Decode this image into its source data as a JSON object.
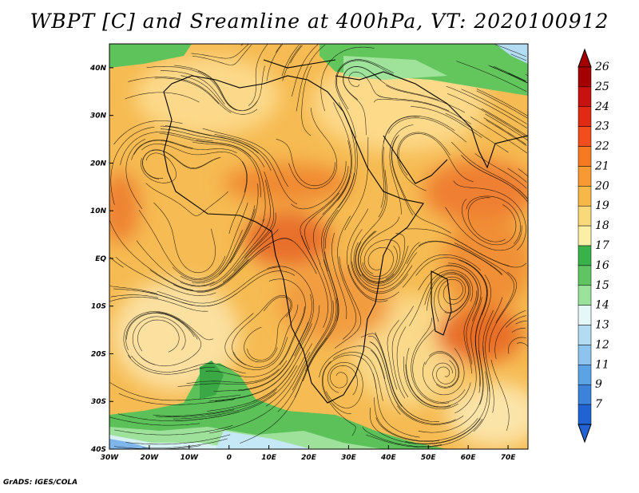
{
  "title": "WBPT [C] and Sreamline at 400hPa, VT: 2020100912",
  "footer": "GrADS: IGES/COLA",
  "map": {
    "x_ticks": [
      "30W",
      "20W",
      "10W",
      "0",
      "10E",
      "20E",
      "30E",
      "40E",
      "50E",
      "60E",
      "70E"
    ],
    "y_ticks": [
      "40N",
      "30N",
      "20N",
      "10N",
      "EQ",
      "10S",
      "20S",
      "30S",
      "40S"
    ],
    "lon_range": [
      -30,
      75
    ],
    "lat_range": [
      -40,
      45
    ]
  },
  "colorbar": {
    "labels": [
      "26",
      "25",
      "24",
      "23",
      "22",
      "21",
      "20",
      "19",
      "18",
      "17",
      "16",
      "15",
      "14",
      "13",
      "12",
      "11",
      "9",
      "7"
    ],
    "colors": [
      "#a50000",
      "#c8120f",
      "#e02a14",
      "#f24d1c",
      "#f57a22",
      "#f79a32",
      "#f7b847",
      "#fad97a",
      "#fbefa5",
      "#39b24a",
      "#5fc461",
      "#9be39a",
      "#e6f7f7",
      "#b3dcf2",
      "#8cc4ee",
      "#5ca3e6",
      "#3b82db",
      "#2163d3"
    ],
    "tips": {
      "top": "#a50000",
      "bottom": "#2163d3"
    }
  }
}
